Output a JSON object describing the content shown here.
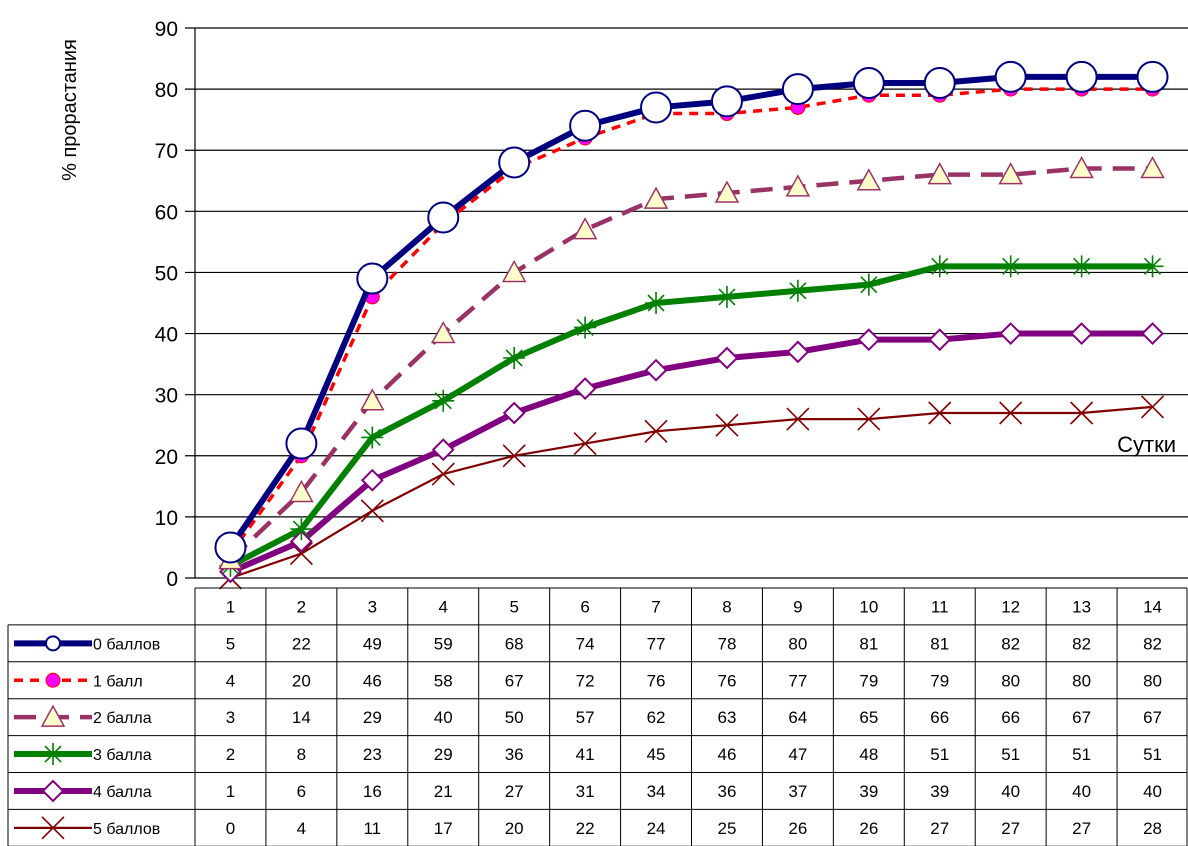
{
  "chart_data": {
    "type": "line",
    "ylabel": "% прорастания",
    "xlabel": "Сутки",
    "ylim": [
      0,
      90
    ],
    "yticks": [
      0,
      10,
      20,
      30,
      40,
      50,
      60,
      70,
      80,
      90
    ],
    "grid": "horizontal",
    "legend": "data table below chart",
    "categories": [
      "1",
      "2",
      "3",
      "4",
      "5",
      "6",
      "7",
      "8",
      "9",
      "10",
      "11",
      "12",
      "13",
      "14"
    ],
    "series": [
      {
        "name": "0 баллов",
        "color": "#00007f",
        "style": "solid-thick",
        "marker": "big-circle",
        "values": [
          5,
          22,
          49,
          59,
          68,
          74,
          77,
          78,
          80,
          81,
          81,
          82,
          82,
          82
        ]
      },
      {
        "name": "1 балл",
        "color": "#ff0000",
        "marker_color": "#ff00ff",
        "style": "dashed",
        "marker": "circle",
        "values": [
          4,
          20,
          46,
          58,
          67,
          72,
          76,
          76,
          77,
          79,
          79,
          80,
          80,
          80
        ]
      },
      {
        "name": "2 балла",
        "color": "#993366",
        "marker_color": "#ffffcc",
        "style": "long-dash",
        "marker": "triangle",
        "values": [
          3,
          14,
          29,
          40,
          50,
          57,
          62,
          63,
          64,
          65,
          66,
          66,
          67,
          67
        ]
      },
      {
        "name": "3 балла",
        "color": "#008000",
        "style": "solid-thick",
        "marker": "star",
        "values": [
          2,
          8,
          23,
          29,
          36,
          41,
          45,
          46,
          47,
          48,
          51,
          51,
          51,
          51
        ]
      },
      {
        "name": "4 балла",
        "color": "#800080",
        "style": "solid-thick",
        "marker": "diamond",
        "values": [
          1,
          6,
          16,
          21,
          27,
          31,
          34,
          36,
          37,
          39,
          39,
          40,
          40,
          40
        ]
      },
      {
        "name": "5 баллов",
        "color": "#800000",
        "style": "solid",
        "marker": "x",
        "values": [
          0,
          4,
          11,
          17,
          20,
          22,
          24,
          25,
          26,
          26,
          27,
          27,
          27,
          28
        ]
      }
    ]
  }
}
